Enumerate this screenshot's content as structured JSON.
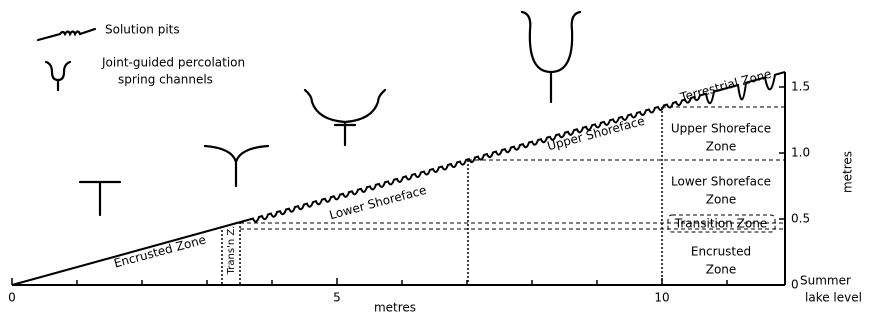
{
  "legend": {
    "solution_pits": "Solution pits",
    "channels": [
      "Joint-guided percolation",
      "spring channels"
    ]
  },
  "slope_labels": {
    "encrusted": "Encrusted Zone",
    "lower": "Lower Shoreface",
    "upper": "Upper Shoreface",
    "terrestrial": "Terrestrial Zone",
    "transition": "Trans'n Z."
  },
  "zones": {
    "upper": [
      "Upper Shoreface",
      "Zone"
    ],
    "lower": [
      "Lower Shoreface",
      "Zone"
    ],
    "transition": "Transition Zone",
    "encrusted": [
      "Encrusted",
      "Zone"
    ]
  },
  "x_axis": {
    "label": "metres",
    "ticks": [
      0,
      5,
      10
    ]
  },
  "y_axis": {
    "label": "metres",
    "ticks": [
      0,
      0.5,
      {
        "value": 1,
        "label": "1.0"
      },
      1.5
    ],
    "baseline_label": [
      "Summer",
      "lake level"
    ]
  }
}
